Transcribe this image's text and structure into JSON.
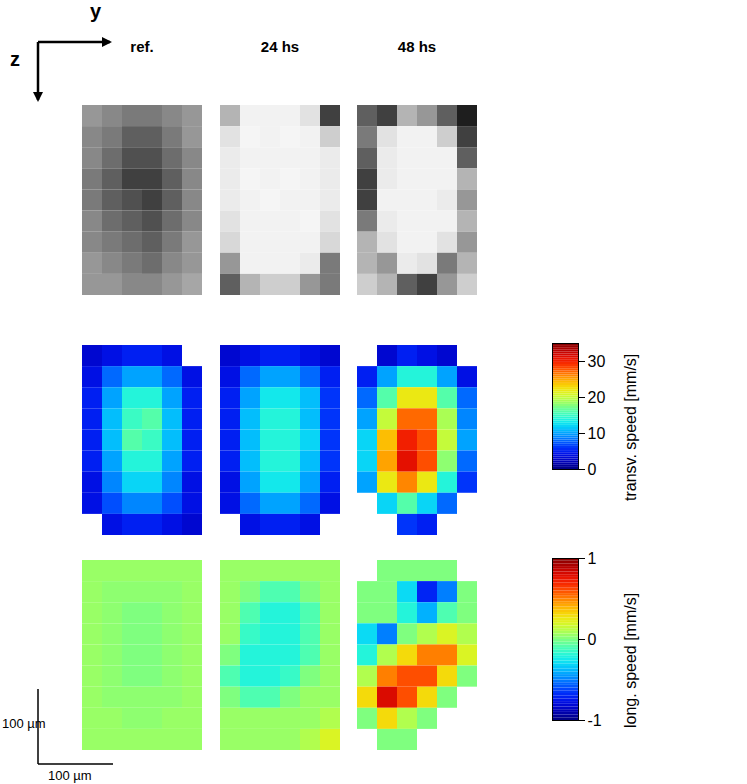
{
  "chart_data": {
    "type": "heatmap",
    "columns": [
      "ref.",
      "24 hs",
      "48 hs"
    ],
    "axis_labels": {
      "horizontal": "y",
      "vertical": "z"
    },
    "scale_bar": {
      "value": 100,
      "label": "100 µm"
    },
    "rows": [
      {
        "color": "gray",
        "zlim": [
          0,
          1
        ],
        "panels": [
          [
            [
              0.5,
              0.45,
              0.4,
              0.4,
              0.45,
              0.5
            ],
            [
              0.45,
              0.4,
              0.3,
              0.3,
              0.4,
              0.5
            ],
            [
              0.45,
              0.35,
              0.25,
              0.25,
              0.35,
              0.45
            ],
            [
              0.4,
              0.3,
              0.2,
              0.2,
              0.3,
              0.45
            ],
            [
              0.4,
              0.3,
              0.25,
              0.2,
              0.3,
              0.45
            ],
            [
              0.45,
              0.35,
              0.3,
              0.25,
              0.35,
              0.45
            ],
            [
              0.45,
              0.4,
              0.35,
              0.3,
              0.4,
              0.5
            ],
            [
              0.5,
              0.45,
              0.4,
              0.35,
              0.45,
              0.5
            ],
            [
              0.5,
              0.5,
              0.45,
              0.45,
              0.5,
              0.55
            ]
          ],
          [
            [
              0.6,
              0.9,
              0.9,
              0.9,
              0.8,
              0.2
            ],
            [
              0.8,
              0.92,
              0.9,
              0.92,
              0.9,
              0.7
            ],
            [
              0.85,
              0.9,
              0.9,
              0.9,
              0.9,
              0.85
            ],
            [
              0.85,
              0.92,
              0.9,
              0.92,
              0.9,
              0.85
            ],
            [
              0.85,
              0.9,
              0.92,
              0.9,
              0.9,
              0.85
            ],
            [
              0.8,
              0.9,
              0.9,
              0.9,
              0.92,
              0.8
            ],
            [
              0.75,
              0.9,
              0.9,
              0.9,
              0.9,
              0.75
            ],
            [
              0.5,
              0.9,
              0.9,
              0.9,
              0.85,
              0.4
            ],
            [
              0.3,
              0.6,
              0.7,
              0.7,
              0.5,
              0.4
            ]
          ],
          [
            [
              0.3,
              0.2,
              0.6,
              0.5,
              0.3,
              0.1
            ],
            [
              0.4,
              0.8,
              0.9,
              0.9,
              0.7,
              0.2
            ],
            [
              0.3,
              0.85,
              0.9,
              0.9,
              0.9,
              0.3
            ],
            [
              0.2,
              0.85,
              0.9,
              0.9,
              0.9,
              0.6
            ],
            [
              0.2,
              0.9,
              0.9,
              0.9,
              0.85,
              0.5
            ],
            [
              0.4,
              0.85,
              0.9,
              0.9,
              0.9,
              0.6
            ],
            [
              0.6,
              0.8,
              0.9,
              0.9,
              0.8,
              0.5
            ],
            [
              0.6,
              0.5,
              0.85,
              0.8,
              0.4,
              0.6
            ],
            [
              0.7,
              0.6,
              0.3,
              0.2,
              0.5,
              0.7
            ]
          ]
        ]
      },
      {
        "label": "transv. speed [mm/s]",
        "color": "jet",
        "zlim": [
          0,
          35
        ],
        "zticks": [
          0,
          10,
          20,
          30
        ],
        "panels": [
          [
            [
              3,
              4,
              5,
              5,
              4,
              null
            ],
            [
              4,
              8,
              10,
              10,
              8,
              4
            ],
            [
              5,
              10,
              14,
              14,
              10,
              5
            ],
            [
              5,
              11,
              15,
              16,
              11,
              5
            ],
            [
              5,
              11,
              16,
              15,
              11,
              5
            ],
            [
              5,
              10,
              14,
              14,
              10,
              5
            ],
            [
              4,
              9,
              12,
              12,
              9,
              4
            ],
            [
              4,
              7,
              9,
              9,
              7,
              4
            ],
            [
              null,
              4,
              5,
              5,
              4,
              3
            ]
          ],
          [
            [
              3,
              4,
              5,
              5,
              4,
              3
            ],
            [
              4,
              8,
              10,
              10,
              8,
              5
            ],
            [
              5,
              10,
              13,
              13,
              11,
              6
            ],
            [
              5,
              11,
              14,
              14,
              11,
              6
            ],
            [
              5,
              11,
              14,
              14,
              12,
              6
            ],
            [
              5,
              11,
              14,
              14,
              11,
              6
            ],
            [
              4,
              10,
              13,
              13,
              10,
              5
            ],
            [
              4,
              8,
              10,
              10,
              8,
              4
            ],
            [
              null,
              4,
              5,
              5,
              4,
              null
            ]
          ],
          [
            [
              null,
              3,
              5,
              4,
              3,
              null
            ],
            [
              5,
              10,
              14,
              14,
              10,
              4
            ],
            [
              8,
              16,
              22,
              22,
              16,
              8
            ],
            [
              10,
              20,
              27,
              27,
              19,
              9
            ],
            [
              12,
              24,
              30,
              28,
              20,
              10
            ],
            [
              12,
              25,
              31,
              28,
              18,
              8
            ],
            [
              10,
              22,
              26,
              22,
              14,
              6
            ],
            [
              null,
              12,
              16,
              12,
              8,
              null
            ],
            [
              null,
              null,
              6,
              5,
              null,
              null
            ]
          ]
        ]
      },
      {
        "label": "long. speed [mm/s]",
        "color": "jet",
        "zlim": [
          -1,
          1
        ],
        "zticks": [
          -1,
          0,
          1
        ],
        "panels": [
          [
            [
              0.05,
              0.05,
              0.05,
              0.05,
              0.05,
              0.05
            ],
            [
              0.05,
              0.03,
              0.03,
              0.03,
              0.03,
              0.05
            ],
            [
              0.05,
              0.03,
              0,
              0,
              0.03,
              0.05
            ],
            [
              0.05,
              0.03,
              0,
              0,
              0.03,
              0.05
            ],
            [
              0.05,
              0.03,
              0,
              0,
              0.03,
              0.05
            ],
            [
              0.05,
              0.03,
              0,
              0,
              0.03,
              0.05
            ],
            [
              0.05,
              0.03,
              0.03,
              0.03,
              0.03,
              0.05
            ],
            [
              0.05,
              0.05,
              0.03,
              0.03,
              0.05,
              0.05
            ],
            [
              0.05,
              0.05,
              0.05,
              0.05,
              0.05,
              0.05
            ]
          ],
          [
            [
              0.05,
              0.05,
              0.05,
              0.05,
              0.05,
              0.05
            ],
            [
              0.05,
              0,
              -0.1,
              -0.1,
              0,
              0.05
            ],
            [
              0.05,
              -0.1,
              -0.2,
              -0.2,
              -0.1,
              0.05
            ],
            [
              0.05,
              -0.15,
              -0.2,
              -0.2,
              -0.1,
              0.05
            ],
            [
              0,
              -0.2,
              -0.2,
              -0.2,
              -0.1,
              0.05
            ],
            [
              -0.1,
              -0.2,
              -0.2,
              -0.15,
              0,
              0.05
            ],
            [
              0,
              -0.1,
              -0.1,
              0,
              0.05,
              0.05
            ],
            [
              0.05,
              0.05,
              0.05,
              0.05,
              0.05,
              0.1
            ],
            [
              0.05,
              0.05,
              0.05,
              0.05,
              0.1,
              0.2
            ]
          ],
          [
            [
              null,
              0,
              0,
              0,
              0,
              null
            ],
            [
              0,
              0,
              -0.3,
              -0.7,
              -0.5,
              0
            ],
            [
              0,
              0,
              -0.2,
              -0.4,
              -0.1,
              0
            ],
            [
              -0.3,
              -0.5,
              0,
              0.1,
              0.2,
              0.1
            ],
            [
              -0.2,
              0.1,
              0.3,
              0.5,
              0.5,
              0.2
            ],
            [
              0.1,
              0.5,
              0.6,
              0.6,
              0.3,
              0
            ],
            [
              0.3,
              0.8,
              0.6,
              0.3,
              0,
              null
            ],
            [
              0,
              0.3,
              0.1,
              0,
              null,
              null
            ],
            [
              null,
              0,
              0,
              null,
              null,
              null
            ]
          ]
        ]
      }
    ]
  }
}
